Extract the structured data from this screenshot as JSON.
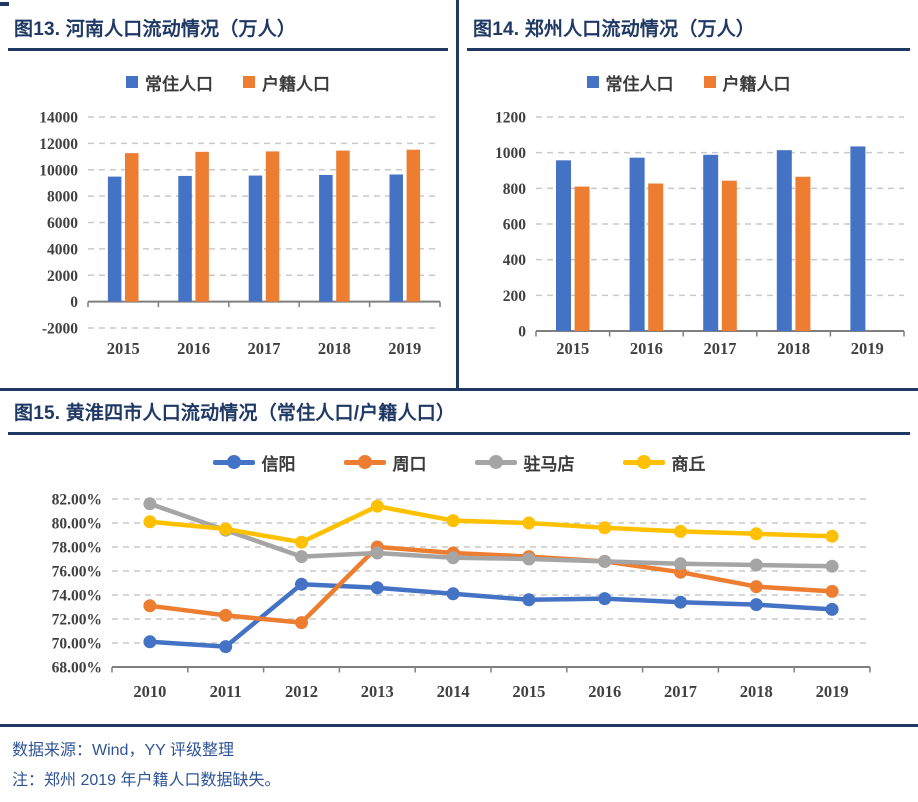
{
  "accent_color": "#1F3864",
  "chart_data": [
    {
      "type": "bar",
      "title": "图13. 河南人口流动情况（万人）",
      "categories": [
        "2015",
        "2016",
        "2017",
        "2018",
        "2019"
      ],
      "series": [
        {
          "name": "常住人口",
          "color": "#4472C4",
          "values": [
            9480,
            9532,
            9559,
            9605,
            9640
          ]
        },
        {
          "name": "户籍人口",
          "color": "#ED7D31",
          "values": [
            11260,
            11360,
            11390,
            11450,
            11520
          ]
        }
      ],
      "ylim": [
        -2000,
        14000
      ],
      "ytick": 2000,
      "grid": "dashed",
      "legend_position": "top"
    },
    {
      "type": "bar",
      "title": "图14. 郑州人口流动情况（万人）",
      "categories": [
        "2015",
        "2016",
        "2017",
        "2018",
        "2019"
      ],
      "series": [
        {
          "name": "常住人口",
          "color": "#4472C4",
          "values": [
            957,
            972,
            988,
            1014,
            1035
          ]
        },
        {
          "name": "户籍人口",
          "color": "#ED7D31",
          "values": [
            810,
            827,
            843,
            865,
            null
          ]
        }
      ],
      "ylim": [
        0,
        1200
      ],
      "ytick": 200,
      "grid": "dashed",
      "legend_position": "top"
    },
    {
      "type": "line",
      "title": "图15. 黄淮四市人口流动情况（常住人口/户籍人口）",
      "x": [
        "2010",
        "2011",
        "2012",
        "2013",
        "2014",
        "2015",
        "2016",
        "2017",
        "2018",
        "2019"
      ],
      "series": [
        {
          "name": "信阳",
          "color": "#4472C4",
          "values": [
            70.1,
            69.7,
            74.9,
            74.6,
            74.1,
            73.6,
            73.7,
            73.4,
            73.2,
            72.8
          ]
        },
        {
          "name": "周口",
          "color": "#ED7D31",
          "values": [
            73.1,
            72.3,
            71.7,
            78.0,
            77.5,
            77.2,
            76.8,
            75.9,
            74.7,
            74.3
          ]
        },
        {
          "name": "驻马店",
          "color": "#A5A5A5",
          "values": [
            81.6,
            79.4,
            77.2,
            77.5,
            77.1,
            77.0,
            76.8,
            76.6,
            76.5,
            76.4
          ]
        },
        {
          "name": "商丘",
          "color": "#FFC000",
          "values": [
            80.1,
            79.5,
            78.4,
            81.4,
            80.2,
            80.0,
            79.6,
            79.3,
            79.1,
            78.9
          ]
        }
      ],
      "ylim": [
        68,
        82
      ],
      "ytick": 2,
      "yformat": "percent2",
      "grid": "dashed",
      "legend_position": "top"
    }
  ],
  "footer": {
    "source": "数据来源：Wind，YY 评级整理",
    "note": "注：郑州 2019 年户籍人口数据缺失。"
  }
}
